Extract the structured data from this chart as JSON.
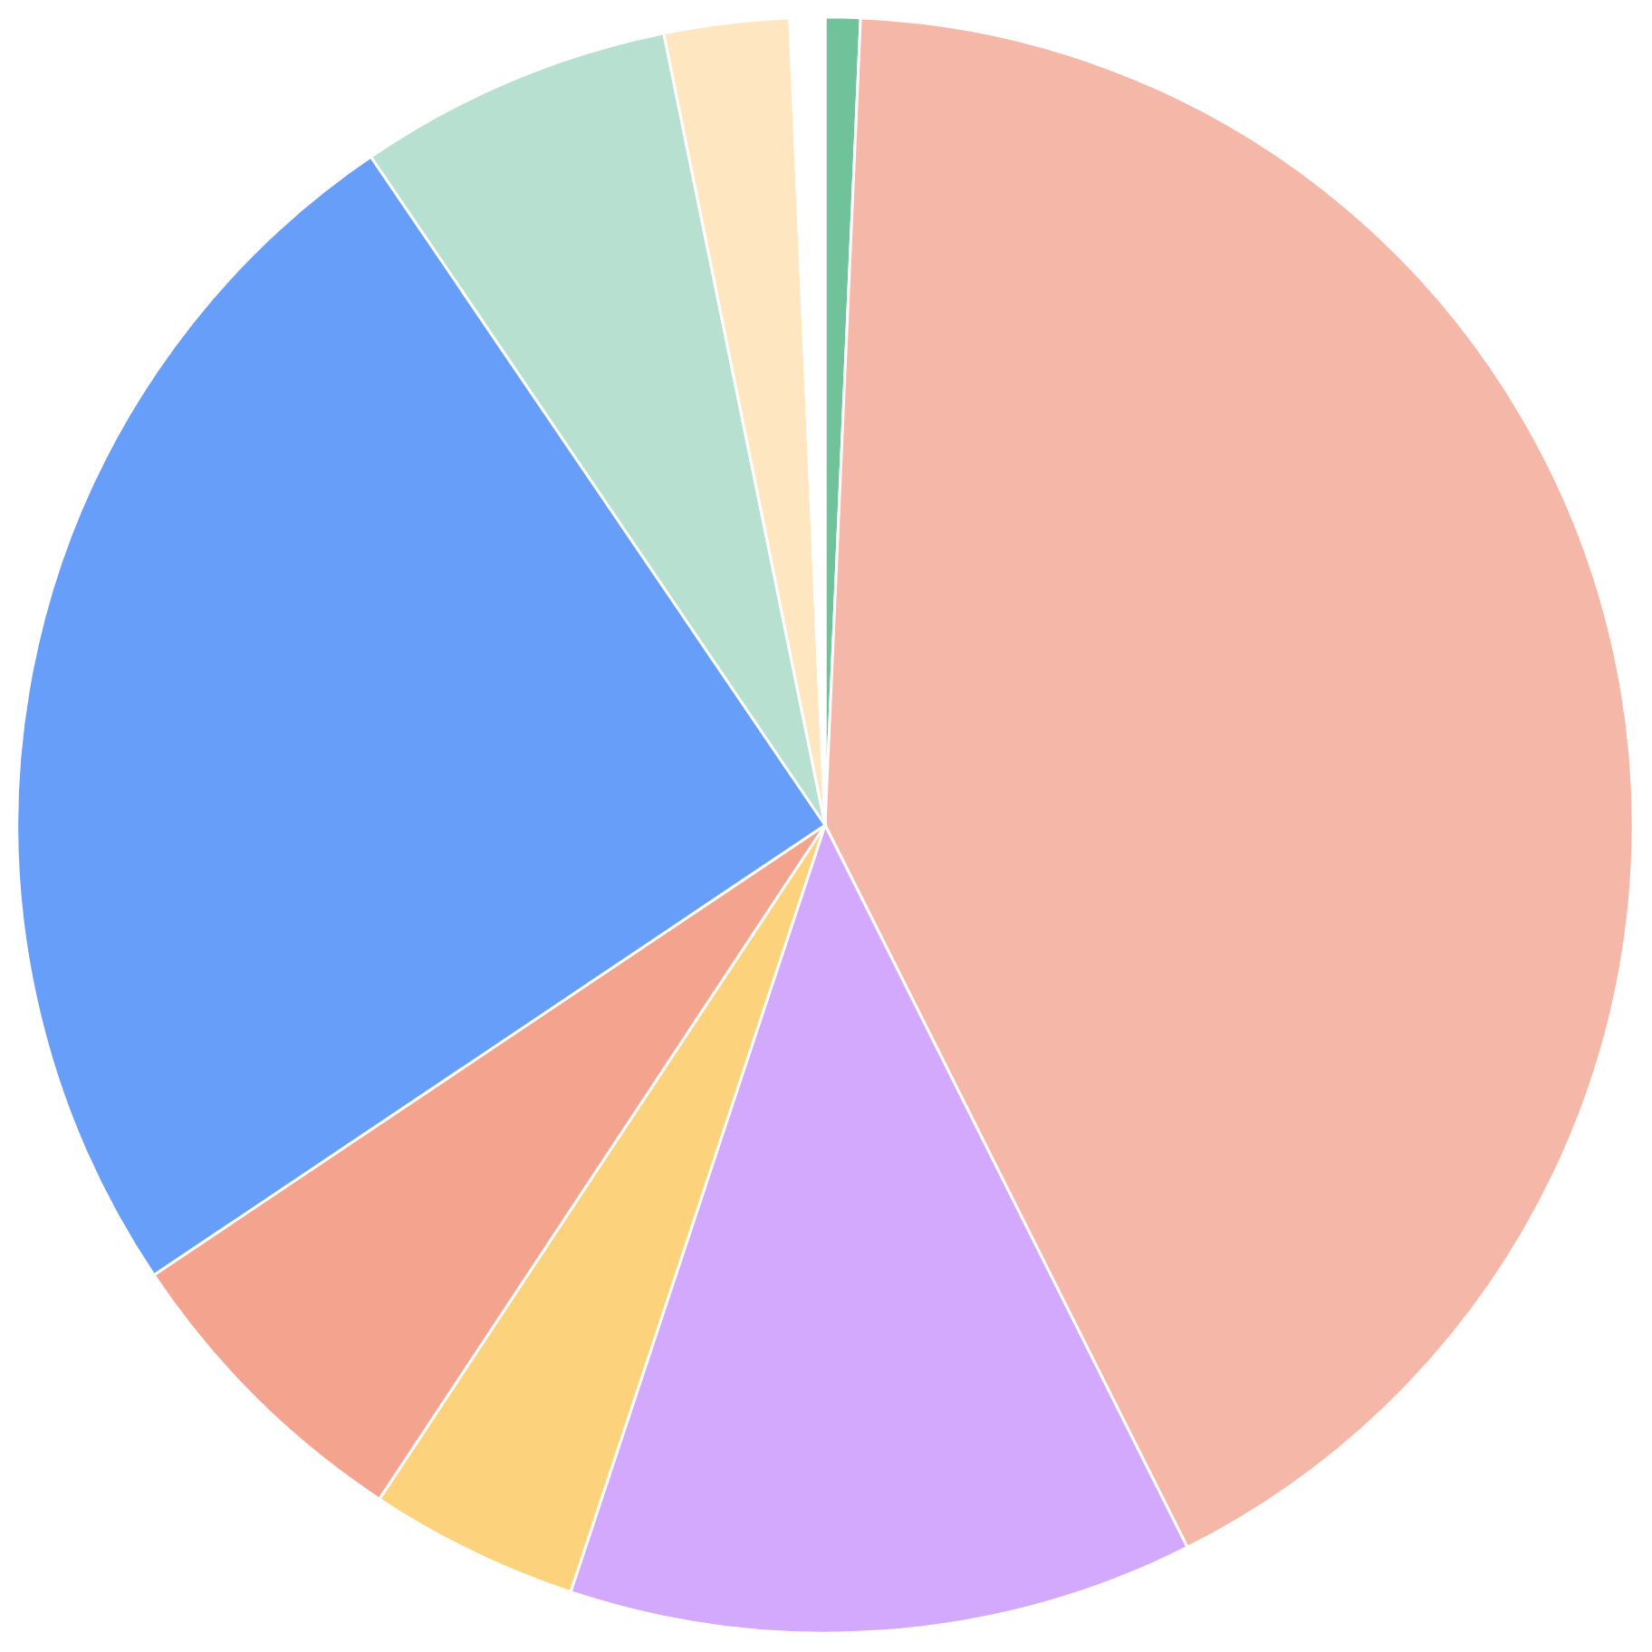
{
  "chart_data": {
    "type": "pie",
    "categories": [
      null,
      null,
      null,
      null,
      null,
      null,
      null,
      null,
      null
    ],
    "values": [
      0.7,
      41.9,
      12.5,
      4.2,
      6.3,
      24.9,
      6.3,
      2.5,
      0.7
    ],
    "colors": [
      "#6fc29a",
      "#f5b7a7",
      "#d2a9fc",
      "#fdd27c",
      "#f4a48e",
      "#679ef9",
      "#b8e0d0",
      "#fee7c0",
      "#ffffff"
    ]
  }
}
